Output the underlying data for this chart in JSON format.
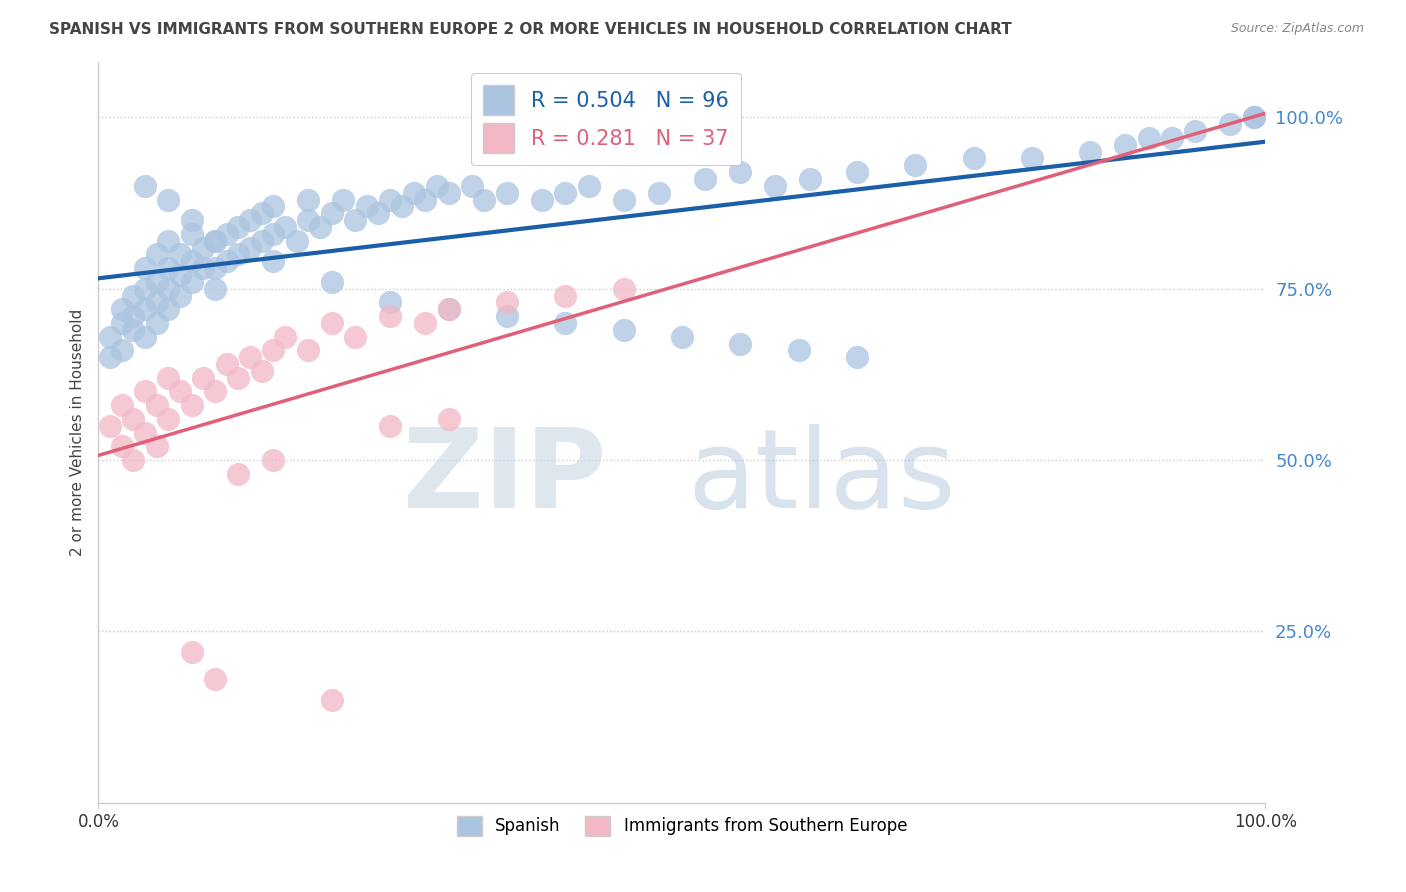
{
  "title": "SPANISH VS IMMIGRANTS FROM SOUTHERN EUROPE 2 OR MORE VEHICLES IN HOUSEHOLD CORRELATION CHART",
  "source": "Source: ZipAtlas.com",
  "ylabel": "2 or more Vehicles in Household",
  "ytick_labels": [
    "",
    "25.0%",
    "50.0%",
    "75.0%",
    "100.0%"
  ],
  "ytick_values": [
    0.0,
    0.25,
    0.5,
    0.75,
    1.0
  ],
  "xlim": [
    0.0,
    1.0
  ],
  "ylim": [
    0.0,
    1.08
  ],
  "blue_R": 0.504,
  "blue_N": 96,
  "pink_R": 0.281,
  "pink_N": 37,
  "legend_label_blue": "Spanish",
  "legend_label_pink": "Immigrants from Southern Europe",
  "blue_color": "#aac4e0",
  "pink_color": "#f2b8c6",
  "blue_line_color": "#1a5fa8",
  "pink_line_color": "#e0607a",
  "blue_dash_color": "#c0d4ec",
  "watermark_zip_color": "#e0e8f0",
  "watermark_atlas_color": "#c8d8ec",
  "title_color": "#444444",
  "source_color": "#888888",
  "ytick_color": "#4488cc",
  "grid_color": "#cccccc",
  "blue_x": [
    0.01,
    0.01,
    0.02,
    0.02,
    0.02,
    0.03,
    0.03,
    0.03,
    0.04,
    0.04,
    0.04,
    0.04,
    0.05,
    0.05,
    0.05,
    0.05,
    0.06,
    0.06,
    0.06,
    0.06,
    0.07,
    0.07,
    0.07,
    0.08,
    0.08,
    0.08,
    0.09,
    0.09,
    0.1,
    0.1,
    0.1,
    0.11,
    0.11,
    0.12,
    0.12,
    0.13,
    0.13,
    0.14,
    0.14,
    0.15,
    0.15,
    0.16,
    0.17,
    0.18,
    0.18,
    0.19,
    0.2,
    0.21,
    0.22,
    0.23,
    0.24,
    0.25,
    0.26,
    0.27,
    0.28,
    0.29,
    0.3,
    0.32,
    0.33,
    0.35,
    0.38,
    0.4,
    0.42,
    0.45,
    0.48,
    0.52,
    0.55,
    0.58,
    0.61,
    0.65,
    0.7,
    0.75,
    0.8,
    0.85,
    0.88,
    0.9,
    0.92,
    0.94,
    0.97,
    0.99,
    0.04,
    0.06,
    0.08,
    0.1,
    0.15,
    0.2,
    0.25,
    0.3,
    0.35,
    0.4,
    0.45,
    0.5,
    0.55,
    0.6,
    0.65,
    0.99
  ],
  "blue_y": [
    0.65,
    0.68,
    0.7,
    0.72,
    0.66,
    0.69,
    0.71,
    0.74,
    0.68,
    0.72,
    0.75,
    0.78,
    0.7,
    0.73,
    0.76,
    0.8,
    0.72,
    0.75,
    0.78,
    0.82,
    0.74,
    0.77,
    0.8,
    0.76,
    0.79,
    0.83,
    0.78,
    0.81,
    0.75,
    0.78,
    0.82,
    0.79,
    0.83,
    0.8,
    0.84,
    0.81,
    0.85,
    0.82,
    0.86,
    0.83,
    0.87,
    0.84,
    0.82,
    0.85,
    0.88,
    0.84,
    0.86,
    0.88,
    0.85,
    0.87,
    0.86,
    0.88,
    0.87,
    0.89,
    0.88,
    0.9,
    0.89,
    0.9,
    0.88,
    0.89,
    0.88,
    0.89,
    0.9,
    0.88,
    0.89,
    0.91,
    0.92,
    0.9,
    0.91,
    0.92,
    0.93,
    0.94,
    0.94,
    0.95,
    0.96,
    0.97,
    0.97,
    0.98,
    0.99,
    1.0,
    0.9,
    0.88,
    0.85,
    0.82,
    0.79,
    0.76,
    0.73,
    0.72,
    0.71,
    0.7,
    0.69,
    0.68,
    0.67,
    0.66,
    0.65,
    1.0
  ],
  "pink_x": [
    0.01,
    0.02,
    0.02,
    0.03,
    0.03,
    0.04,
    0.04,
    0.05,
    0.05,
    0.06,
    0.06,
    0.07,
    0.08,
    0.09,
    0.1,
    0.11,
    0.12,
    0.13,
    0.14,
    0.15,
    0.16,
    0.18,
    0.2,
    0.22,
    0.25,
    0.28,
    0.3,
    0.35,
    0.4,
    0.45,
    0.08,
    0.1,
    0.12,
    0.15,
    0.2,
    0.25,
    0.3
  ],
  "pink_y": [
    0.55,
    0.52,
    0.58,
    0.5,
    0.56,
    0.54,
    0.6,
    0.52,
    0.58,
    0.56,
    0.62,
    0.6,
    0.58,
    0.62,
    0.6,
    0.64,
    0.62,
    0.65,
    0.63,
    0.66,
    0.68,
    0.66,
    0.7,
    0.68,
    0.71,
    0.7,
    0.72,
    0.73,
    0.74,
    0.75,
    0.22,
    0.18,
    0.48,
    0.5,
    0.15,
    0.55,
    0.56
  ]
}
